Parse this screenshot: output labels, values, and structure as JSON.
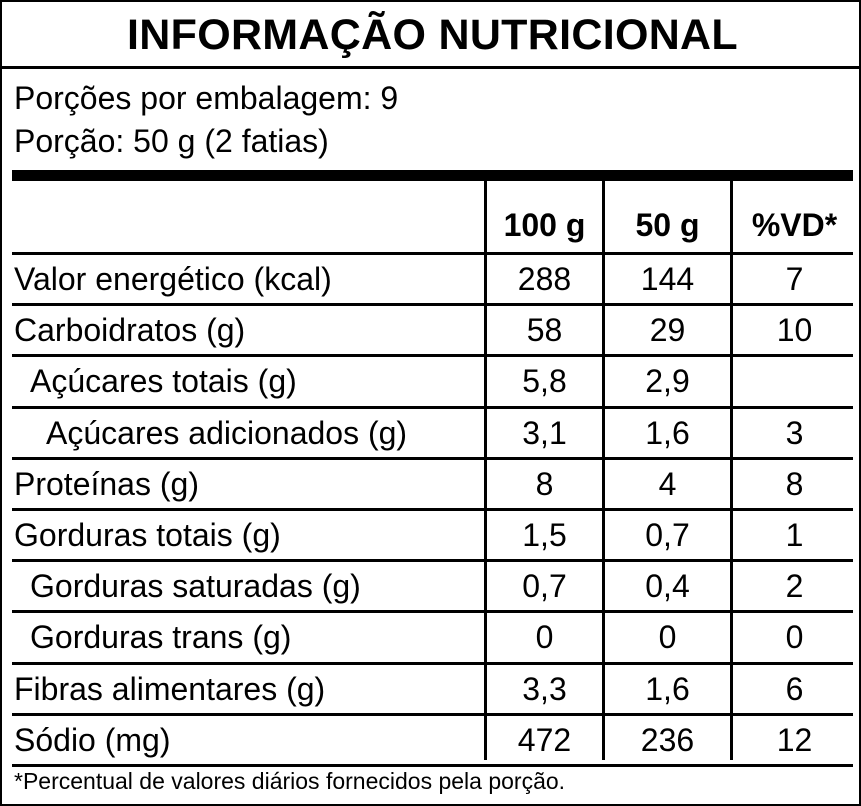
{
  "title": "INFORMAÇÃO NUTRICIONAL",
  "servings_per_package": "Porções por embalagem: 9",
  "serving_size": "Porção: 50 g (2 fatias)",
  "columns": [
    "100 g",
    "50 g",
    "%VD*"
  ],
  "rows": [
    {
      "name": "Valor energético (kcal)",
      "indent": 0,
      "v100": "288",
      "v50": "144",
      "vd": "7"
    },
    {
      "name": "Carboidratos (g)",
      "indent": 0,
      "v100": "58",
      "v50": "29",
      "vd": "10"
    },
    {
      "name": "Açúcares totais (g)",
      "indent": 1,
      "v100": "5,8",
      "v50": "2,9",
      "vd": ""
    },
    {
      "name": "Açúcares adicionados (g)",
      "indent": 2,
      "v100": "3,1",
      "v50": "1,6",
      "vd": "3"
    },
    {
      "name": "Proteínas (g)",
      "indent": 0,
      "v100": "8",
      "v50": "4",
      "vd": "8"
    },
    {
      "name": "Gorduras totais (g)",
      "indent": 0,
      "v100": "1,5",
      "v50": "0,7",
      "vd": "1"
    },
    {
      "name": "Gorduras saturadas (g)",
      "indent": 1,
      "v100": "0,7",
      "v50": "0,4",
      "vd": "2"
    },
    {
      "name": "Gorduras trans (g)",
      "indent": 1,
      "v100": "0",
      "v50": "0",
      "vd": "0"
    },
    {
      "name": "Fibras alimentares (g)",
      "indent": 0,
      "v100": "3,3",
      "v50": "1,6",
      "vd": "6"
    },
    {
      "name": "Sódio (mg)",
      "indent": 0,
      "v100": "472",
      "v50": "236",
      "vd": "12"
    }
  ],
  "footnote": "*Percentual de valores diários fornecidos pela porção."
}
